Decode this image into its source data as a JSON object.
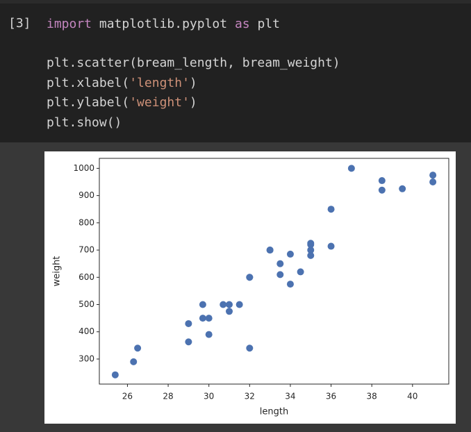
{
  "cell": {
    "prompt": "[3]",
    "lines": [
      [
        {
          "text": "import",
          "color": "#c586c0"
        },
        {
          "text": " matplotlib.pyplot ",
          "color": "#d4d4d4"
        },
        {
          "text": "as",
          "color": "#c586c0"
        },
        {
          "text": " plt",
          "color": "#d4d4d4"
        }
      ],
      [
        {
          "text": "plt.scatter(bream_length, bream_weight)",
          "color": "#d4d4d4"
        }
      ],
      [
        {
          "text": "plt.xlabel(",
          "color": "#d4d4d4"
        },
        {
          "text": "'length'",
          "color": "#ce9178"
        },
        {
          "text": ")",
          "color": "#d4d4d4"
        }
      ],
      [
        {
          "text": "plt.ylabel(",
          "color": "#d4d4d4"
        },
        {
          "text": "'weight'",
          "color": "#ce9178"
        },
        {
          "text": ")",
          "color": "#d4d4d4"
        }
      ],
      [
        {
          "text": "plt.show()",
          "color": "#d4d4d4"
        }
      ]
    ]
  },
  "chart_data": {
    "type": "scatter",
    "xlabel": "length",
    "ylabel": "weight",
    "color": "#4c72b0",
    "x": [
      25.4,
      26.3,
      26.5,
      29.0,
      29.0,
      29.7,
      29.7,
      30.0,
      30.0,
      30.7,
      31.0,
      31.0,
      31.5,
      32.0,
      32.0,
      32.0,
      33.0,
      33.0,
      33.5,
      33.5,
      34.0,
      34.0,
      34.5,
      35.0,
      35.0,
      35.0,
      35.0,
      36.0,
      36.0,
      37.0,
      38.5,
      38.5,
      39.5,
      41.0,
      41.0
    ],
    "y": [
      242,
      290,
      340,
      363,
      430,
      450,
      500,
      390,
      450,
      500,
      475,
      500,
      500,
      340,
      600,
      600,
      700,
      700,
      610,
      650,
      575,
      685,
      620,
      680,
      700,
      725,
      720,
      714,
      850,
      1000,
      920,
      955,
      925,
      975,
      950
    ],
    "xlim": [
      24.62,
      41.78
    ],
    "ylim": [
      208.1,
      1036.65
    ],
    "xticks": [
      26,
      28,
      30,
      32,
      34,
      36,
      38,
      40
    ],
    "yticks": [
      300,
      400,
      500,
      600,
      700,
      800,
      900,
      1000
    ]
  }
}
